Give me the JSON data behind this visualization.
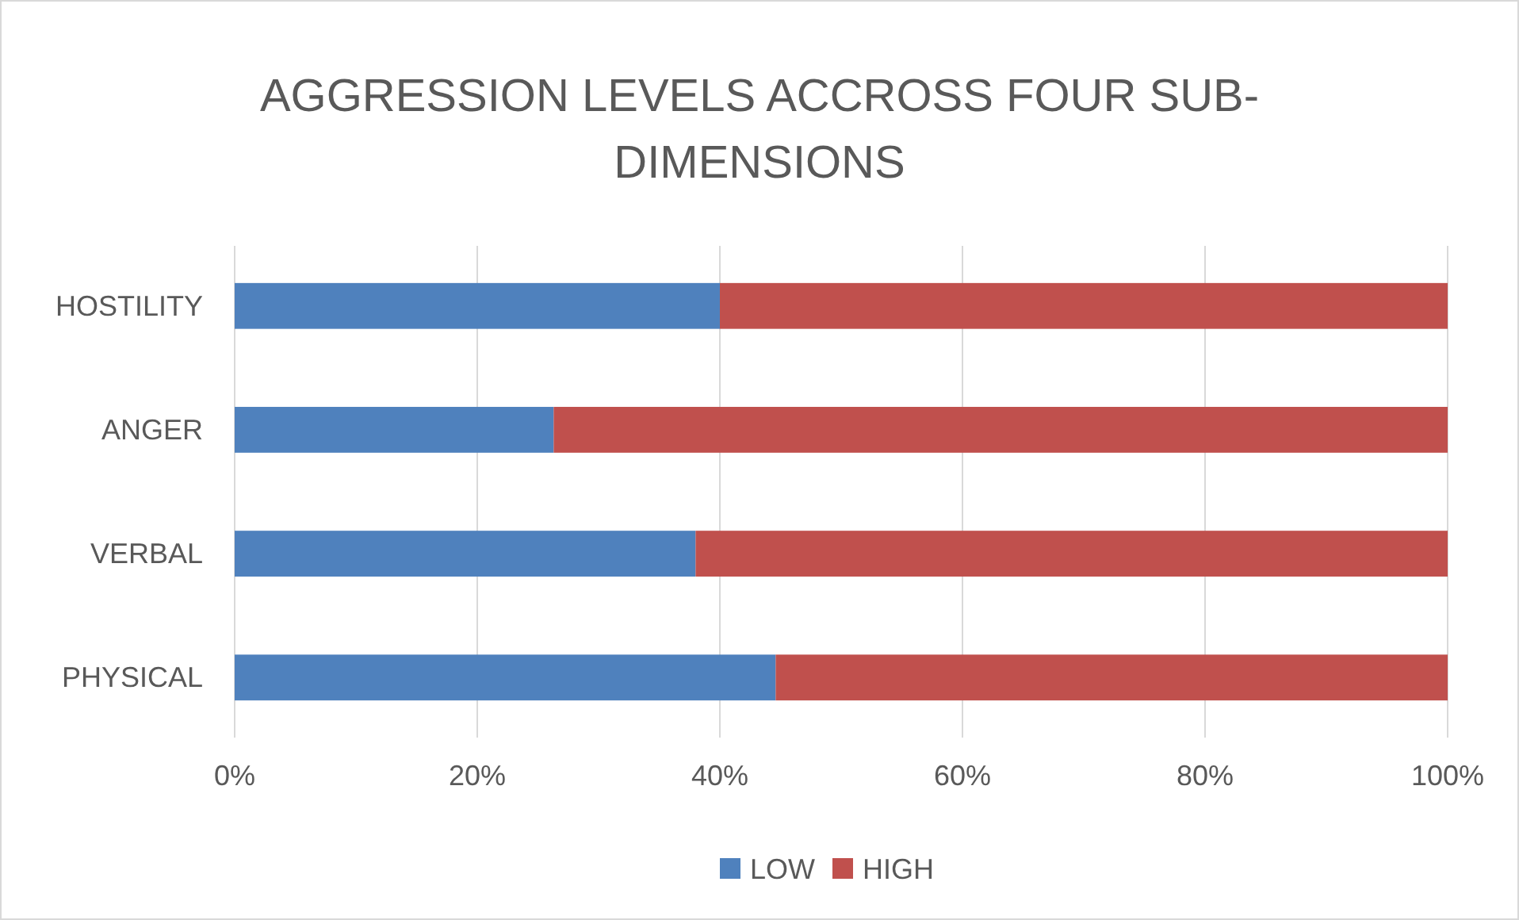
{
  "chart_data": {
    "type": "bar",
    "orientation": "horizontal",
    "stacked": true,
    "title": "AGGRESSION LEVELS ACCROSS FOUR SUB-DIMENSIONS",
    "categories": [
      "HOSTILITY",
      "ANGER",
      "VERBAL",
      "PHYSICAL"
    ],
    "series": [
      {
        "name": "LOW",
        "color": "#4f81bd",
        "values": [
          40,
          26.3,
          38,
          44.6
        ]
      },
      {
        "name": "HIGH",
        "color": "#c0504d",
        "values": [
          60,
          73.7,
          62,
          55.4
        ]
      }
    ],
    "xlim": [
      0,
      100
    ],
    "xticks": [
      {
        "value": 0,
        "label": "0%"
      },
      {
        "value": 20,
        "label": "20%"
      },
      {
        "value": 40,
        "label": "40%"
      },
      {
        "value": 60,
        "label": "60%"
      },
      {
        "value": 80,
        "label": "80%"
      },
      {
        "value": 100,
        "label": "100%"
      }
    ],
    "grid": "x",
    "legend": "bottom"
  }
}
